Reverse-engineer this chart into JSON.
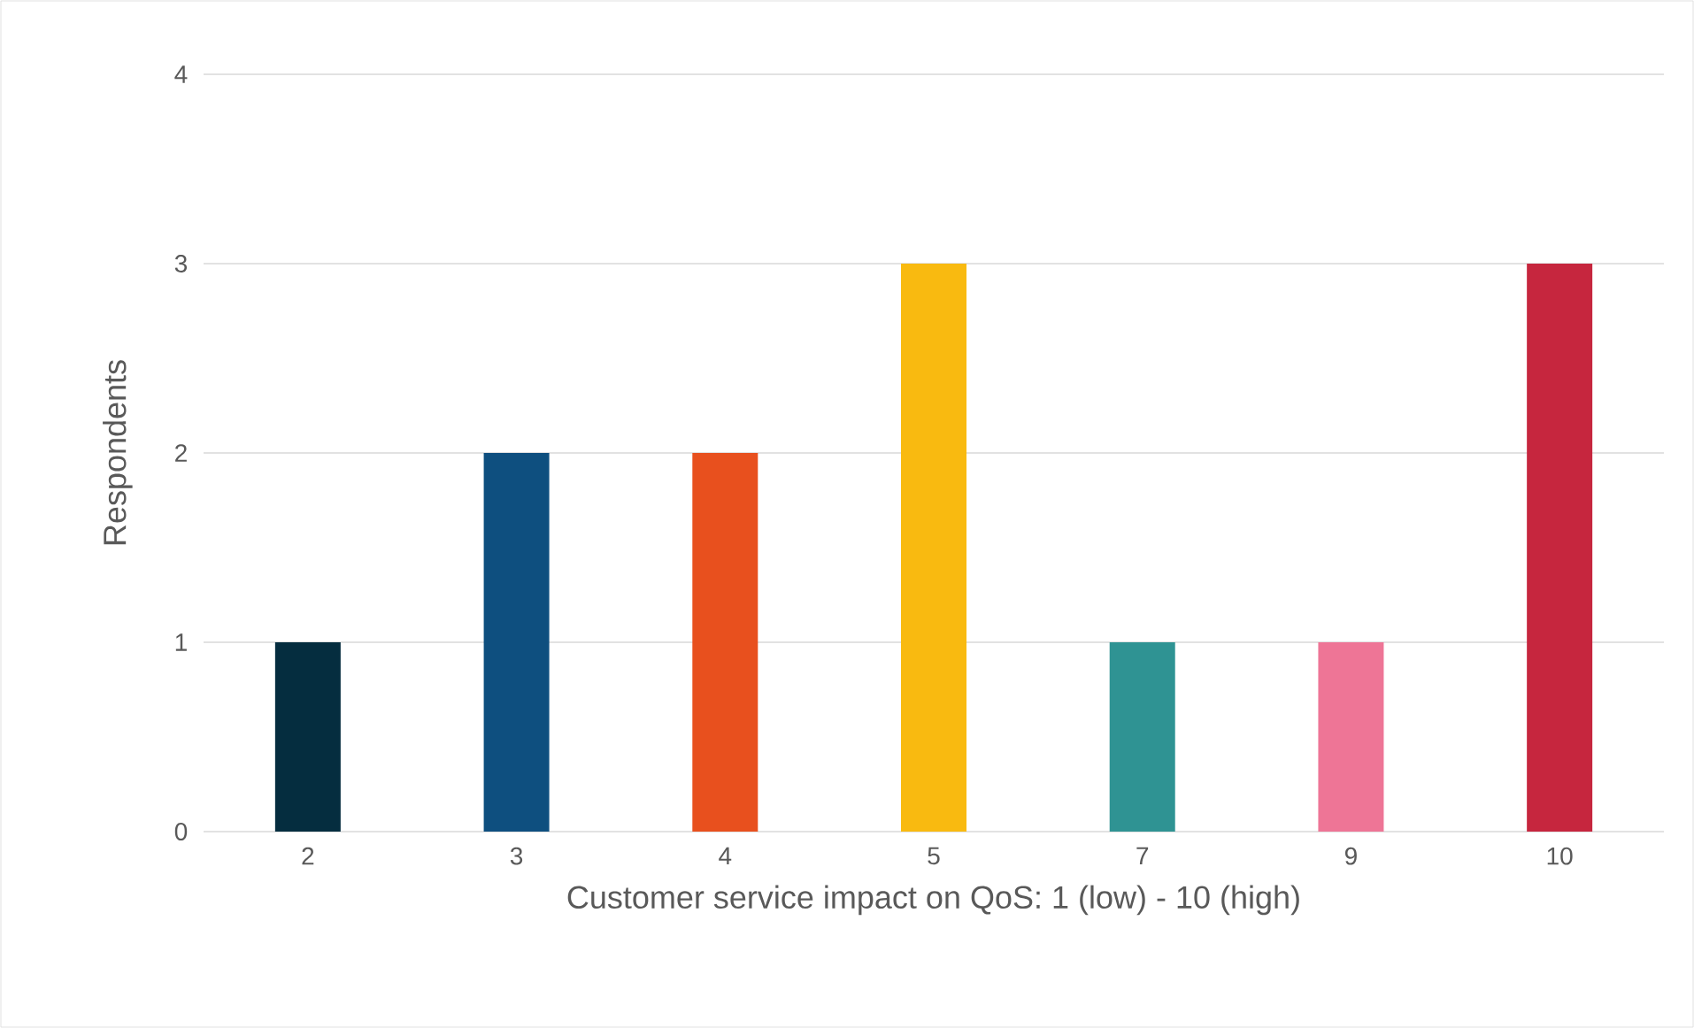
{
  "chart_data": {
    "type": "bar",
    "xlabel": "Customer service impact on QoS: 1 (low) - 10 (high)",
    "ylabel": "Respondents",
    "categories": [
      "2",
      "3",
      "4",
      "5",
      "7",
      "9",
      "10"
    ],
    "values": [
      1,
      2,
      2,
      3,
      1,
      1,
      3
    ],
    "colors": [
      "#052d3f",
      "#0e4f7f",
      "#e8501e",
      "#f9ba10",
      "#2f9393",
      "#ee7596",
      "#c6263e"
    ],
    "ylim": [
      0,
      4
    ],
    "yticks": [
      0,
      1,
      2,
      3,
      4
    ],
    "grid": "y"
  }
}
